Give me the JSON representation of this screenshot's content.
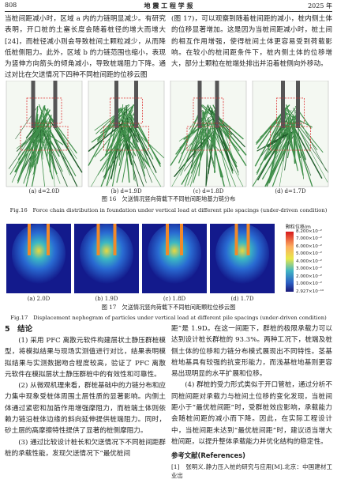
{
  "header": {
    "page": "808",
    "journal": "地 震 工 程 学 报",
    "year": "2025 年"
  },
  "body": {
    "top_left": "当桩间距减小时，区域 a 内的力链明显减少。有研究表明，开口桩的土塞长度会随着桩径的增大而增大[24]，而桩径减小则会导致桩间土颗粒减少，从而降低桩侧阻力。此外，区域 b 的力链范围也缩小，表现为竖伸方向箭头的倾角减小，导致桩端阻力下降。通过对比在欠送情况下四种不同桩间距的位移云图",
    "top_right": "(图 17)，可以观察到随着桩间距的减小，桩内侧土体的位移显著增加。这是因为当桩间距减小时，桩土间的相互作用增强，使得桩间土体更容易受到荷载影响。在较小的桩间距条件下，桩内侧土体的位移增大，部分土颗粒在桩端处排出并沿着桩侧向外移动。"
  },
  "figure16": {
    "panels": [
      "(a) d=2.0D",
      "(b) d=1.9D",
      "(c) d=1.8D",
      "(d) d=1.7D"
    ],
    "caption_cn": "图 16　欠送情况竖向荷载下不同桩间距地基力链分布",
    "caption_en": "Fig.16　Force chain distribution in foundation under vertical load at different pile spacings (under-driven condition)"
  },
  "figure17": {
    "colorbar_title": "颗粒位移/m",
    "colorbar_ticks": [
      "8.200×10⁻²",
      "7.000×10⁻²",
      "6.000×10⁻²",
      "5.000×10⁻²",
      "4.000×10⁻²",
      "3.000×10⁻²",
      "2.000×10⁻²",
      "1.000×10⁻²",
      "2.927×10⁻¹⁰"
    ],
    "panels": [
      "(a) 2.0D",
      "(b) 1.9D",
      "(c) 1.8D",
      "(d) 1.7D"
    ],
    "caption_cn": "图 17　欠送情况竖向荷载下不同桩间距颗粒位移云图",
    "caption_en": "Fig.17　Displacement nephogram of particles under vertical load at different pile spacings (under-driven condition)"
  },
  "section": {
    "heading": "5　结论",
    "left": [
      "(1) 采用 PFC 离散元软件构建层状土静压群桩模型，将模拟结果与现场实测值进行对比，结果表明模拟结果与实测数据吻合程度较高，验证了 PFC 离散元软件在模拟层状土静压群桩中的有效性和可靠性。",
      "(2) 从微观机理来看，群桩基础中的力链分布和应力集中现象受桩体周围土层性质的显著影响。内侧土体通过紧密和加筋作用增强摩阻力，而桩端土体则依赖力链沿桩体边缘的斜向延伸提供桩端阻力。同时，砂土层的高摩擦特性提供了显著的桩侧摩阻力。",
      "(3) 通过比较设计桩长和欠送情况下不同桩间距群桩的承载性能，发现欠送情况下“最优桩间"
    ],
    "right_cont": "距”是 1.9D。在这一间距下，群桩的极限承载力可以达到设计桩长群桩的 93.3%。两种工况下，桩端及桩侧土体的位移和力链分布模式展现出不同特性。茎基桩地基具有较强的抗变形能力，而浅基桩地基则更容易出现明显的水平扩展和位移。",
    "right": [
      "(4) 群桩的受力形式类似于开口管桩，通过分析不同桩间距对承载力与桩间土位移的变化发现，当桩间距小于“最优桩间距”时，受群桩效应影响，承载能力会随桩间距的减小而下降。因此，在实际工程设计中，当桩间距未达到“最优桩间距”时，建议适当增大桩间距，以提升整体承载能力并优化结构的稳定性。"
    ]
  },
  "references": {
    "heading": "参考文献(References)",
    "items": [
      "[1]　张明义.静力压入桩的研究与应用[M].北京：中国建材工业出"
    ]
  }
}
